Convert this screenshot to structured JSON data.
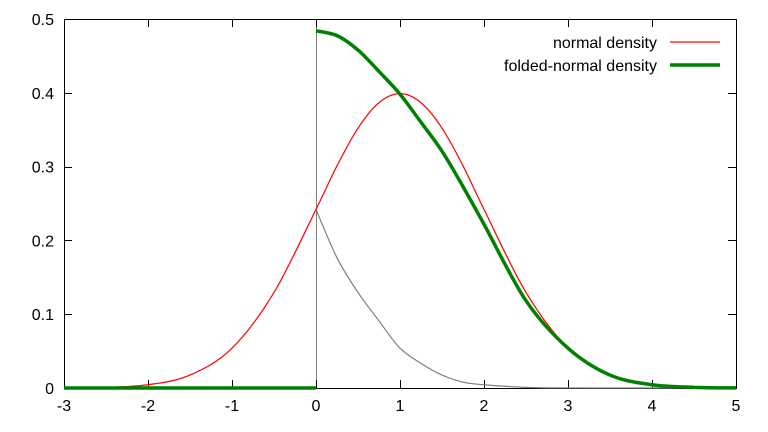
{
  "chart_data": {
    "type": "line",
    "title": "",
    "xlabel": "",
    "ylabel": "",
    "xlim": [
      -3,
      5
    ],
    "ylim": [
      0,
      0.5
    ],
    "x_ticks": [
      -3,
      -2,
      -1,
      0,
      1,
      2,
      3,
      4,
      5
    ],
    "x_tick_labels": [
      "-3",
      "-2",
      "-1",
      "0",
      "1",
      "2",
      "3",
      "4",
      "5"
    ],
    "y_ticks": [
      0,
      0.1,
      0.2,
      0.3,
      0.4,
      0.5
    ],
    "y_tick_labels": [
      "0",
      "0.1",
      "0.2",
      "0.3",
      "0.4",
      "0.5"
    ],
    "grid": false,
    "legend_position": "top-right",
    "vertical_line_x": 0,
    "series": [
      {
        "name": "normal density",
        "color": "#ff0000",
        "weight": "thin",
        "x": [
          -3,
          -2.5,
          -2,
          -1.5,
          -1,
          -0.5,
          0,
          0.25,
          0.5,
          0.75,
          1,
          1.25,
          1.5,
          1.75,
          2,
          2.5,
          3,
          3.5,
          4,
          4.5,
          5
        ],
        "y": [
          0.0001,
          0.0009,
          0.0044,
          0.0175,
          0.054,
          0.1295,
          0.242,
          0.3011,
          0.3521,
          0.3867,
          0.3989,
          0.3867,
          0.3521,
          0.3011,
          0.242,
          0.1295,
          0.054,
          0.0175,
          0.0044,
          0.0009,
          0.0001
        ]
      },
      {
        "name": "folded-normal density",
        "color": "#008000",
        "weight": "thick",
        "x": [
          -3,
          -0.001,
          0,
          0.25,
          0.5,
          0.75,
          1,
          1.25,
          1.5,
          1.75,
          2,
          2.5,
          3,
          3.5,
          4,
          4.5,
          5
        ],
        "y": [
          0,
          0,
          0.484,
          0.4775,
          0.4579,
          0.4289,
          0.3981,
          0.3601,
          0.3209,
          0.2729,
          0.2219,
          0.1183,
          0.054,
          0.0175,
          0.0044,
          0.0009,
          0.0001
        ],
        "discontinuity_after_index": 1
      },
      {
        "name": "",
        "color": "#7f7f7f",
        "weight": "thin",
        "x": [
          0,
          0.25,
          0.5,
          0.75,
          1,
          1.25,
          1.5,
          1.75,
          2,
          2.5,
          3,
          3.5,
          4,
          4.5,
          5
        ],
        "y": [
          0.242,
          0.1764,
          0.1295,
          0.0909,
          0.054,
          0.0334,
          0.0175,
          0.0079,
          0.0044,
          0.0009,
          0.0001,
          0,
          0,
          0,
          0
        ]
      }
    ],
    "legend": [
      {
        "label": "normal density",
        "series": 0
      },
      {
        "label": "folded-normal density",
        "series": 1
      }
    ]
  }
}
